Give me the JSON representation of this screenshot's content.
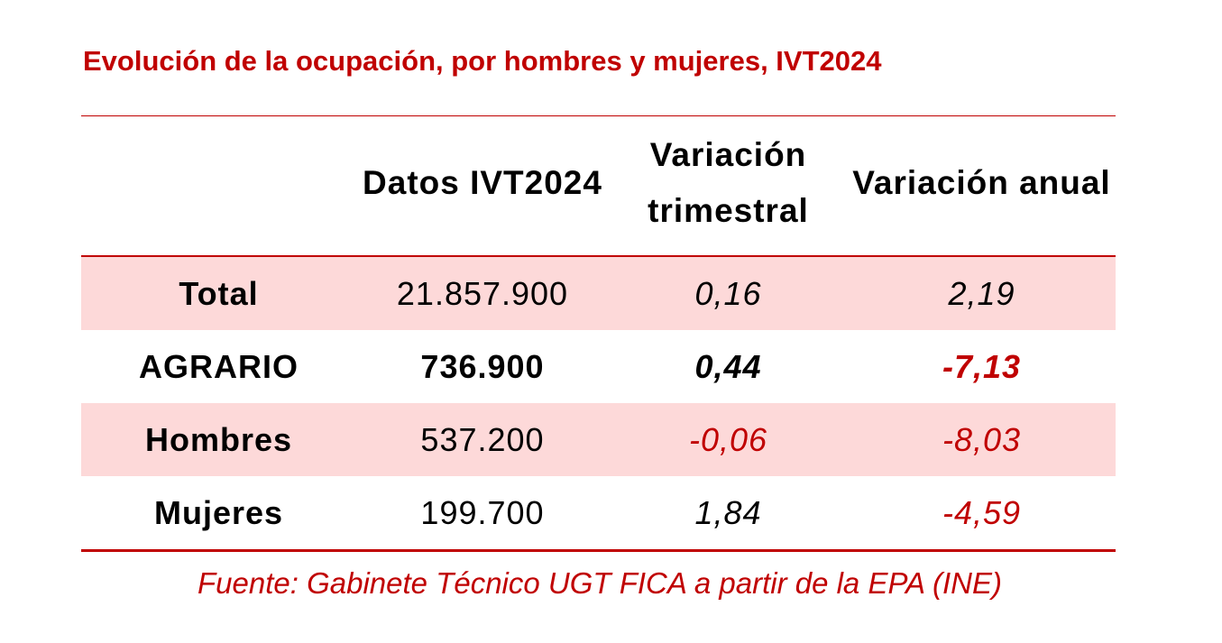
{
  "title": "Evolución de la ocupación, por hombres y mujeres, IVT2024",
  "table": {
    "header": [
      "",
      "Datos IVT2024",
      "Variación trimestral",
      "Variación anual"
    ],
    "rows": [
      [
        "Total",
        "21.857.900",
        "0,16",
        "2,19"
      ],
      [
        "AGRARIO",
        "736.900",
        "0,44",
        "-7,13"
      ],
      [
        "Hombres",
        "537.200",
        "-0,06",
        "-8,03"
      ],
      [
        "Mujeres",
        "199.700",
        "1,84",
        "-4,59"
      ]
    ]
  },
  "source": "Fuente: Gabinete Técnico UGT FICA a partir de la EPA (INE)"
}
